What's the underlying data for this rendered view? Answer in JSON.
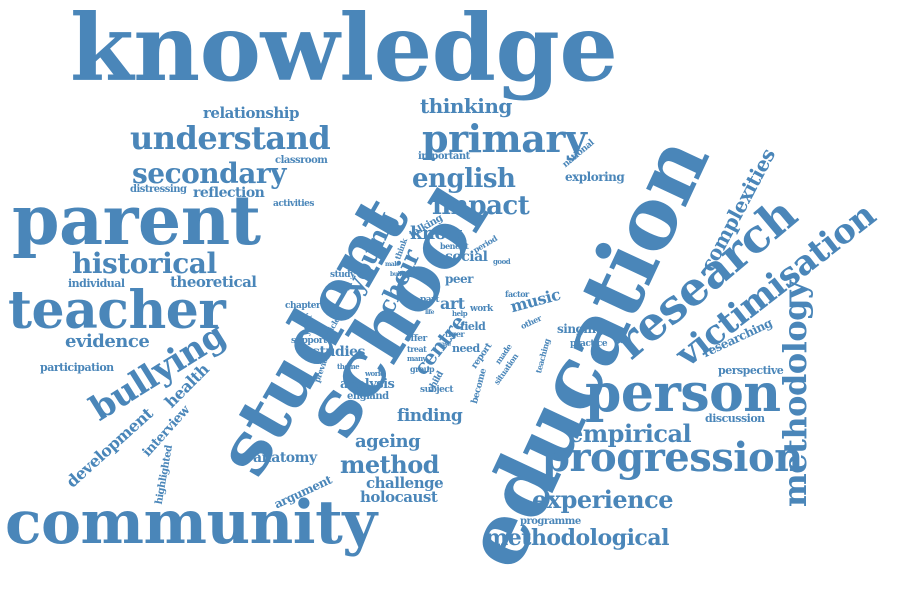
{
  "color": "#4a86b9",
  "words": [
    "knowledge",
    "education",
    "school",
    "student",
    "parent",
    "community",
    "teacher",
    "person",
    "research",
    "progression",
    "primary",
    "understand",
    "methodology",
    "victimisation",
    "bullying",
    "historical",
    "secondary",
    "english",
    "impact",
    "experience",
    "methodological",
    "empirical",
    "method",
    "young",
    "choir",
    "complexities",
    "centre",
    "thinking",
    "know",
    "evidence",
    "ageing",
    "finding",
    "relationship",
    "challenge",
    "holocaust",
    "anatomy",
    "reflection",
    "theoretical",
    "health",
    "development",
    "interview",
    "studies",
    "analysis",
    "music",
    "singing",
    "researching",
    "perspective",
    "discussion",
    "exploring",
    "argument",
    "social",
    "participation",
    "individual",
    "distressing",
    "classroom",
    "important",
    "activities",
    "art",
    "field",
    "peer",
    "practice",
    "england",
    "programme",
    "highlighted",
    "support",
    "chapter",
    "study",
    "year",
    "talking",
    "national",
    "think",
    "benefit",
    "period",
    "factor",
    "part",
    "need",
    "work",
    "offer",
    "treat",
    "tiger",
    "many",
    "group",
    "subject",
    "child",
    "become",
    "report",
    "made",
    "situation",
    "teaching",
    "other",
    "theme",
    "world",
    "previous",
    "article",
    "build",
    "male",
    "good",
    "case",
    "life",
    "help"
  ]
}
